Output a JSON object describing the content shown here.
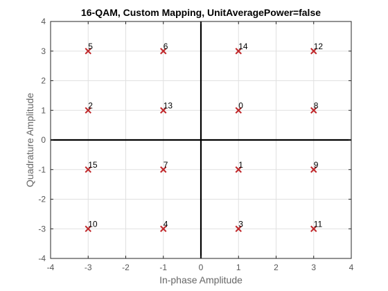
{
  "chart_data": {
    "type": "scatter",
    "title": "16-QAM, Custom Mapping, UnitAveragePower=false",
    "xlabel": "In-phase Amplitude",
    "ylabel": "Quadrature Amplitude",
    "xlim": [
      -4,
      4
    ],
    "ylim": [
      -4,
      4
    ],
    "xticks": [
      -4,
      -3,
      -2,
      -1,
      0,
      1,
      2,
      3,
      4
    ],
    "yticks": [
      -4,
      -3,
      -2,
      -1,
      0,
      1,
      2,
      3,
      4
    ],
    "xtick_labels": [
      "-4",
      "-3",
      "-2",
      "-1",
      "0",
      "1",
      "2",
      "3",
      "4"
    ],
    "ytick_labels": [
      "-4",
      "-3",
      "-2",
      "-1",
      "0",
      "1",
      "2",
      "3",
      "4"
    ],
    "grid": true,
    "marker": "x",
    "marker_color": "#c0282b",
    "axis_line_color": "#000000",
    "grid_color": "#e0e0e0",
    "points": [
      {
        "x": -3,
        "y": 3,
        "label": "5"
      },
      {
        "x": -1,
        "y": 3,
        "label": "6"
      },
      {
        "x": 1,
        "y": 3,
        "label": "14"
      },
      {
        "x": 3,
        "y": 3,
        "label": "12"
      },
      {
        "x": -3,
        "y": 1,
        "label": "2"
      },
      {
        "x": -1,
        "y": 1,
        "label": "13"
      },
      {
        "x": 1,
        "y": 1,
        "label": "0"
      },
      {
        "x": 3,
        "y": 1,
        "label": "8"
      },
      {
        "x": -3,
        "y": -1,
        "label": "15"
      },
      {
        "x": -1,
        "y": -1,
        "label": "7"
      },
      {
        "x": 1,
        "y": -1,
        "label": "1"
      },
      {
        "x": 3,
        "y": -1,
        "label": "9"
      },
      {
        "x": -3,
        "y": -3,
        "label": "10"
      },
      {
        "x": -1,
        "y": -3,
        "label": "4"
      },
      {
        "x": 1,
        "y": -3,
        "label": "3"
      },
      {
        "x": 3,
        "y": -3,
        "label": "11"
      }
    ]
  }
}
